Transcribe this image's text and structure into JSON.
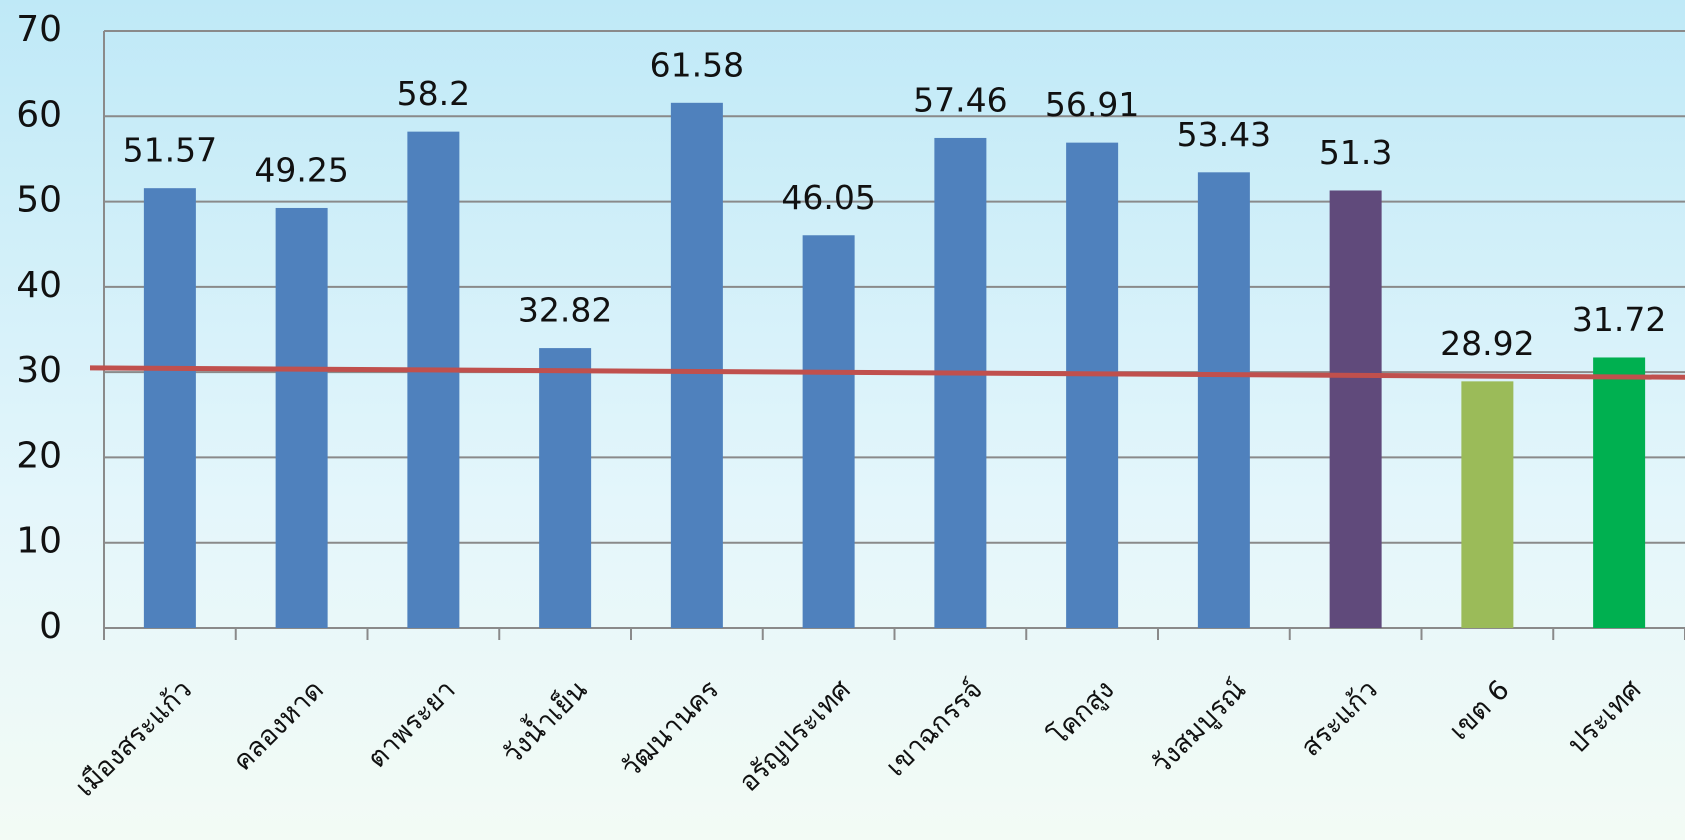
{
  "chart_data": {
    "type": "bar",
    "categories": [
      "เมืองสระแก้ว",
      "คลองหาด",
      "ตาพระยา",
      "วังน้ำเย็น",
      "วัฒนานคร",
      "อรัญประเทศ",
      "เขาฉกรรจ์",
      "โคกสูง",
      "วังสมบูรณ์",
      "สระแก้ว",
      "เขต 6",
      "ประเทศ"
    ],
    "values": [
      51.57,
      49.25,
      58.2,
      32.82,
      61.58,
      46.05,
      57.46,
      56.91,
      53.43,
      51.3,
      28.92,
      31.72
    ],
    "colors": [
      "#4f81bd",
      "#4f81bd",
      "#4f81bd",
      "#4f81bd",
      "#4f81bd",
      "#4f81bd",
      "#4f81bd",
      "#4f81bd",
      "#4f81bd",
      "#604a7b",
      "#9bbb59",
      "#00b050"
    ],
    "ylim": [
      0,
      70
    ],
    "yticks": [
      0,
      10,
      20,
      30,
      40,
      50,
      60,
      70
    ],
    "grid": true,
    "trend_line": {
      "color": "#c0504d",
      "start": 30.5,
      "end": 29.4
    }
  }
}
